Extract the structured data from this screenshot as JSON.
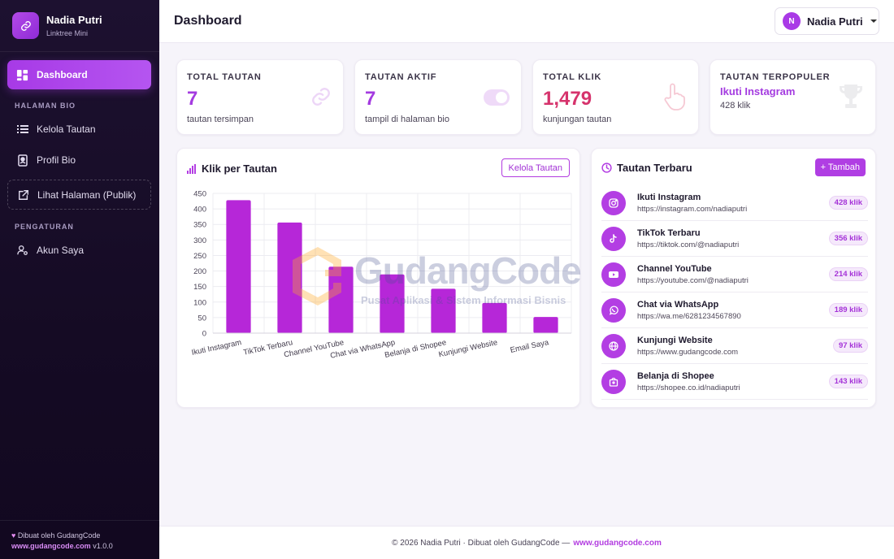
{
  "brand": {
    "name": "Nadia Putri",
    "subtitle": "Linktree Mini"
  },
  "sidebar": {
    "active": {
      "label": "Dashboard",
      "icon": "dashboard-icon"
    },
    "section_bio": "HALAMAN BIO",
    "items_bio": [
      {
        "label": "Kelola Tautan",
        "icon": "list-icon"
      },
      {
        "label": "Profil Bio",
        "icon": "id-card-icon"
      },
      {
        "label": "Lihat Halaman (Publik)",
        "icon": "external-link-icon"
      }
    ],
    "section_settings": "PENGATURAN",
    "items_settings": [
      {
        "label": "Akun Saya",
        "icon": "user-cog-icon"
      }
    ],
    "footer": {
      "made_by": "Dibuat oleh GudangCode",
      "site": "www.gudangcode.com",
      "version": "v1.0.0"
    }
  },
  "header": {
    "title": "Dashboard",
    "user": {
      "initial": "N",
      "name": "Nadia Putri"
    }
  },
  "stats": [
    {
      "label": "TOTAL TAUTAN",
      "value": "7",
      "sub": "tautan tersimpan",
      "icon": "link-icon",
      "color": "#a43be0"
    },
    {
      "label": "TAUTAN AKTIF",
      "value": "7",
      "sub": "tampil di halaman bio",
      "icon": "toggle-icon",
      "color": "#a43be0"
    },
    {
      "label": "TOTAL KLIK",
      "value": "1,479",
      "sub": "kunjungan tautan",
      "icon": "pointer-icon",
      "color": "#d6336c"
    },
    {
      "label": "TAUTAN TERPOPULER",
      "value": "Ikuti Instagram",
      "sub": "428 klik",
      "icon": "trophy-icon",
      "color": "#a43be0"
    }
  ],
  "chart_card": {
    "title": "Klik per Tautan",
    "button": "Kelola Tautan"
  },
  "chart_data": {
    "type": "bar",
    "categories": [
      "Ikuti Instagram",
      "TikTok Terbaru",
      "Channel YouTube",
      "Chat via WhatsApp",
      "Belanja di Shopee",
      "Kunjungi Website",
      "Email Saya"
    ],
    "values": [
      428,
      356,
      214,
      189,
      143,
      97,
      52
    ],
    "ylim": [
      0,
      450
    ],
    "yticks": [
      0,
      50,
      100,
      150,
      200,
      250,
      300,
      350,
      400,
      450
    ],
    "grid": true,
    "color": "#b627d8"
  },
  "recent": {
    "title": "Tautan Terbaru",
    "button": "+ Tambah",
    "items": [
      {
        "title": "Ikuti Instagram",
        "url": "https://instagram.com/nadiaputri",
        "clicks": "428 klik",
        "icon": "instagram-icon"
      },
      {
        "title": "TikTok Terbaru",
        "url": "https://tiktok.com/@nadiaputri",
        "clicks": "356 klik",
        "icon": "tiktok-icon"
      },
      {
        "title": "Channel YouTube",
        "url": "https://youtube.com/@nadiaputri",
        "clicks": "214 klik",
        "icon": "youtube-icon"
      },
      {
        "title": "Chat via WhatsApp",
        "url": "https://wa.me/6281234567890",
        "clicks": "189 klik",
        "icon": "whatsapp-icon"
      },
      {
        "title": "Kunjungi Website",
        "url": "https://www.gudangcode.com",
        "clicks": "97 klik",
        "icon": "globe-icon"
      },
      {
        "title": "Belanja di Shopee",
        "url": "https://shopee.co.id/nadiaputri",
        "clicks": "143 klik",
        "icon": "shopping-bag-icon"
      }
    ]
  },
  "footer": {
    "text": "© 2026 Nadia Putri · Dibuat oleh GudangCode —",
    "link": "www.gudangcode.com"
  },
  "watermark": {
    "title": "GudangCode",
    "subtitle": "Pusat Aplikasi & Sistem Informasi Bisnis"
  }
}
